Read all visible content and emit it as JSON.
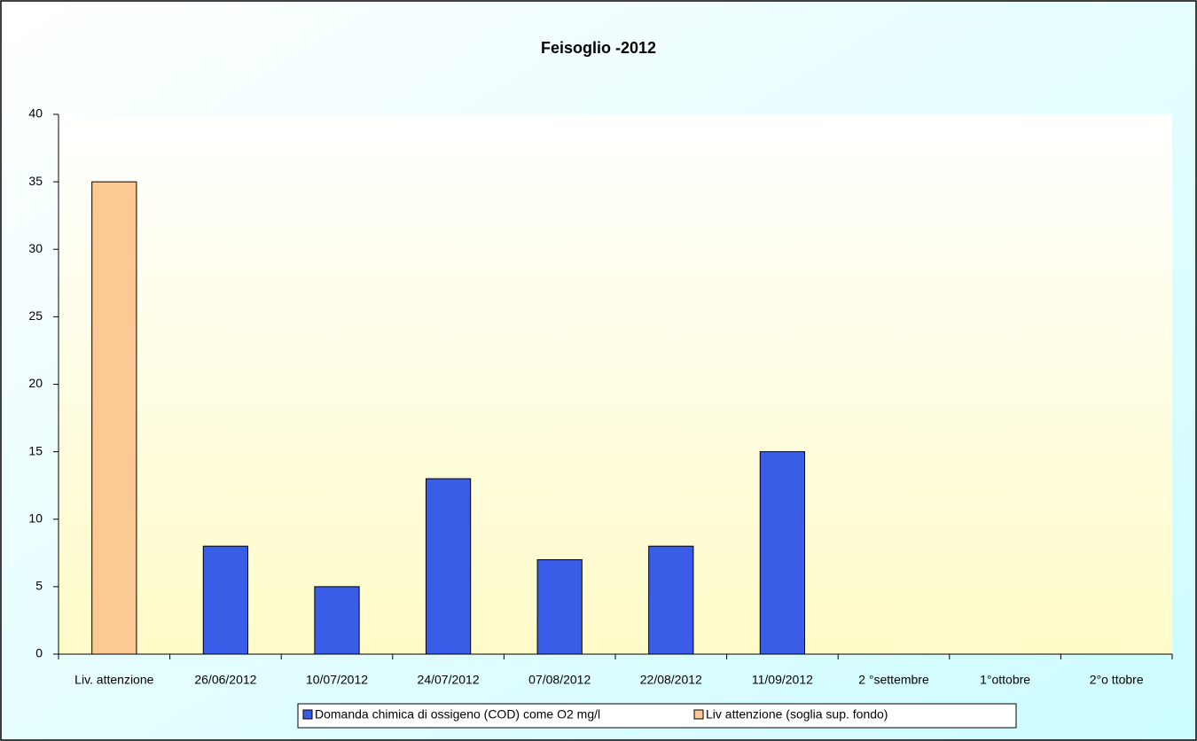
{
  "chart_data": {
    "type": "bar",
    "title": "Feisoglio -2012",
    "categories": [
      "Liv. attenzione",
      "26/06/2012",
      "10/07/2012",
      "24/07/2012",
      "07/08/2012",
      "22/08/2012",
      "11/09/2012",
      "2 °settembre",
      "1°ottobre",
      "2°o ttobre"
    ],
    "series": [
      {
        "name": "Domanda chimica di ossigeno (COD) come O2 mg/l",
        "color": "#3a5de8",
        "values": [
          null,
          8,
          5,
          13,
          7,
          8,
          15,
          null,
          null,
          null
        ]
      },
      {
        "name": "Liv attenzione (soglia sup. fondo)",
        "color": "#fcc894",
        "values": [
          35,
          null,
          null,
          null,
          null,
          null,
          null,
          null,
          null,
          null
        ]
      }
    ],
    "ylim": [
      0,
      40
    ],
    "yticks": [
      0,
      5,
      10,
      15,
      20,
      25,
      30,
      35,
      40
    ],
    "grid": false,
    "legend": "bottom"
  }
}
